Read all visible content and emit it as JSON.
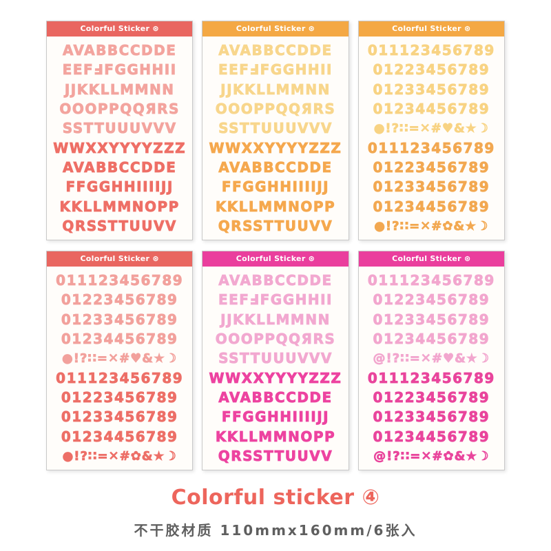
{
  "sheet_header": "Colorful Sticker ⊛",
  "sheets": [
    {
      "name": "coral-letters",
      "header_bg": "#e96660",
      "light_color": "#f3a49e",
      "dark_color": "#ee6f66",
      "rows": [
        "AVABBCCDDE",
        "EEFℲFGGHHII",
        "JJKKLLMMNN",
        "OOOPPQQЯRS",
        "SSTTUUUVVV",
        "WWXXYYYYZZZ",
        "AVABBCCDDE",
        "FFGGHHIIIIJJ",
        "KKLLMMNOPP",
        "QRSSTTUUVV"
      ]
    },
    {
      "name": "orange-letters",
      "header_bg": "#f4a844",
      "light_color": "#f8d68c",
      "dark_color": "#f5a84e",
      "rows": [
        "AVABBCCDDE",
        "EEFℲFGGHHII",
        "JJKKLLMMNN",
        "OOOPPQQЯRS",
        "SSTTUUUVVV",
        "WWXXYYYYZZZ",
        "AVABBCCDDE",
        "FFGGHHIIIIJJ",
        "KKLLMMNOPP",
        "QRSSTTUUVV"
      ]
    },
    {
      "name": "yellow-numbers",
      "header_bg": "#f4a844",
      "light_color": "#f8d383",
      "dark_color": "#f2a851",
      "rows": [
        "011123456789",
        "01223456789",
        "01233456789",
        "01234456789",
        "●!?∷=✕#♥&★☽",
        "011123456789",
        "01223456789",
        "01233456789",
        "01234456789",
        "●!?∷=✕#✿&★☽"
      ]
    },
    {
      "name": "coral-numbers",
      "header_bg": "#e96660",
      "light_color": "#f2a19c",
      "dark_color": "#ed6f67",
      "rows": [
        "011123456789",
        "01223456789",
        "01233456789",
        "01234456789",
        "●!?∷=✕#♥&★☽",
        "011123456789",
        "01223456789",
        "01233456789",
        "01234456789",
        "●!?∷=✕#✿&★☽"
      ]
    },
    {
      "name": "pink-letters",
      "header_bg": "#ea3e9d",
      "light_color": "#f2a8d0",
      "dark_color": "#ed43a0",
      "rows": [
        "AVABBCCDDE",
        "EEFℲFGGHHII",
        "JJKKLLMMNN",
        "OOOPPQQЯRS",
        "SSTTUUUVVV",
        "WWXXYYYYZZZ",
        "AVABBCCDDE",
        "FFGGHHIIIIJJ",
        "KKLLMMNOPP",
        "QRSSTTUUVV"
      ]
    },
    {
      "name": "pink-numbers",
      "header_bg": "#ea3e9d",
      "light_color": "#f2a6ce",
      "dark_color": "#e9459c",
      "rows": [
        "011123456789",
        "01223456789",
        "01233456789",
        "01234456789",
        "@!?∷=✕#♥&★☽",
        "011123456789",
        "01223456789",
        "01233456789",
        "01234456789",
        "@!?∷=✕#✿&★☽"
      ]
    }
  ],
  "footer": {
    "title": "Colorful sticker ④",
    "title_color": "#ed655c",
    "subtitle": "不干胶材质 110mmx160mm/6张入",
    "subtitle_color": "#5f5f5f"
  }
}
